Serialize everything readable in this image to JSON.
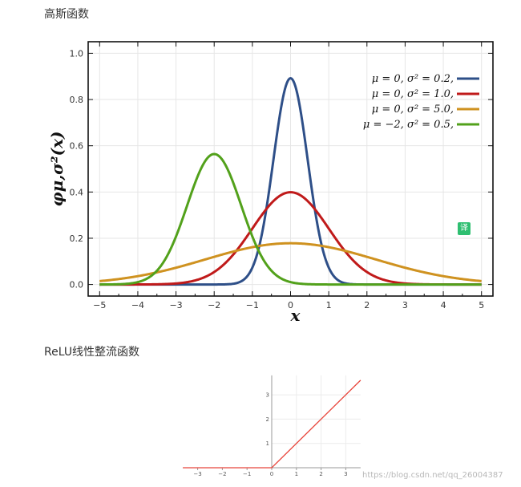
{
  "headings": {
    "gaussian": "高斯函数",
    "relu": "ReLU线性整流函数"
  },
  "badge": "译",
  "watermark": "https://blog.csdn.net/qq_26004387",
  "chart_data": [
    {
      "type": "line",
      "title": "",
      "xlabel": "x",
      "ylabel": "φμ,σ²(x)",
      "xlim": [
        -5.3,
        5.3
      ],
      "ylim": [
        -0.05,
        1.05
      ],
      "xticks": [
        -5,
        -4,
        -3,
        -2,
        -1,
        0,
        1,
        2,
        3,
        4,
        5
      ],
      "yticks": [
        0.0,
        0.2,
        0.4,
        0.6,
        0.8,
        1.0
      ],
      "ytick_labels": [
        "0.0",
        "0.2",
        "0.4",
        "0.6",
        "0.8",
        "1.0"
      ],
      "grid": true,
      "legend_position": "top-right",
      "series": [
        {
          "name": "μ = 0,    σ² = 0.2,",
          "mu": 0,
          "sigma2": 0.2,
          "color": "#2e4f88"
        },
        {
          "name": "μ = 0,    σ² = 1.0,",
          "mu": 0,
          "sigma2": 1.0,
          "color": "#c01a1a"
        },
        {
          "name": "μ = 0,    σ² = 5.0,",
          "mu": 0,
          "sigma2": 5.0,
          "color": "#cf9220"
        },
        {
          "name": "μ = −2,  σ² = 0.5,",
          "mu": -2,
          "sigma2": 0.5,
          "color": "#52a11b"
        }
      ]
    },
    {
      "type": "line",
      "title": "",
      "xlim": [
        -3.6,
        3.6
      ],
      "ylim": [
        0,
        3.8
      ],
      "xticks": [
        -3,
        -2,
        -1,
        0,
        1,
        2,
        3
      ],
      "xtick_labels": [
        "−3",
        "−2",
        "−1",
        "0",
        "1",
        "2",
        "3"
      ],
      "yticks": [
        1,
        2,
        3
      ],
      "ytick_labels": [
        "1",
        "2",
        "3"
      ],
      "grid": true,
      "series": [
        {
          "x": [
            -3.6,
            0,
            3.6
          ],
          "y": [
            0,
            0,
            3.6
          ],
          "color": "#e8463c"
        }
      ]
    }
  ]
}
